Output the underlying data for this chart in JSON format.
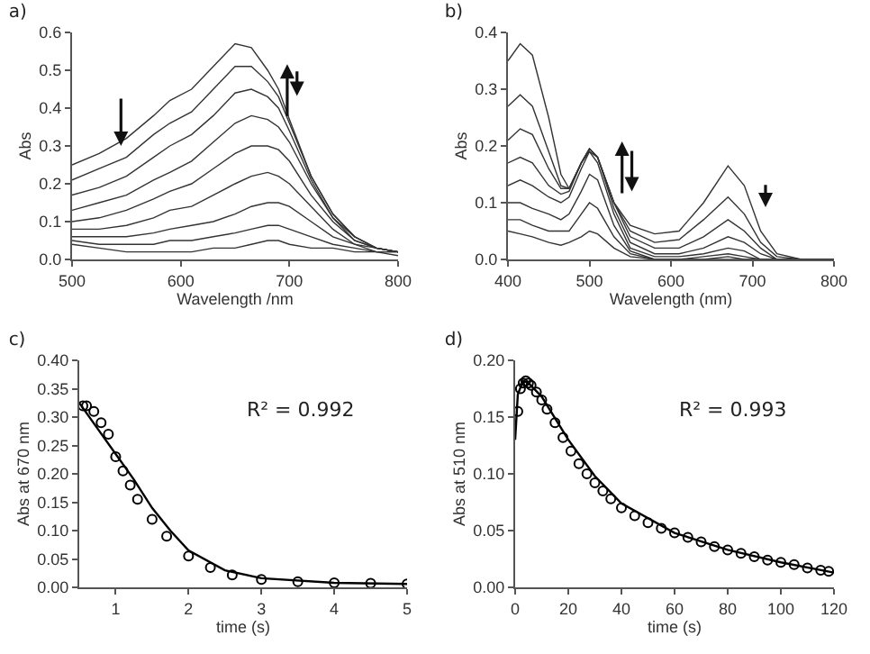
{
  "chart_data": [
    {
      "type": "line",
      "title": "a)",
      "xlabel": "Wavelength /nm",
      "ylabel": "Abs",
      "xlim": [
        500,
        800
      ],
      "xticks": [
        500,
        600,
        700,
        800
      ],
      "ylim": [
        0,
        0.6
      ],
      "yticks": [
        {
          "value": 0,
          "label": "0.0"
        },
        {
          "value": 0.1,
          "label": "0.1"
        },
        {
          "value": 0.2,
          "label": "0.2"
        },
        {
          "value": 0.3,
          "label": "0.3"
        },
        {
          "value": 0.4,
          "label": "0.4"
        },
        {
          "value": 0.5,
          "label": "0.5"
        },
        {
          "value": 0.6,
          "label": "0.6"
        }
      ],
      "grid": false,
      "marker": "none",
      "line_style": "solid",
      "x": [
        500,
        525,
        550,
        575,
        590,
        610,
        630,
        650,
        665,
        680,
        690,
        700,
        720,
        740,
        760,
        780,
        800
      ],
      "series": [
        {
          "color": "#333333",
          "values": [
            0.25,
            0.28,
            0.32,
            0.38,
            0.42,
            0.45,
            0.51,
            0.57,
            0.56,
            0.5,
            0.45,
            0.37,
            0.22,
            0.12,
            0.06,
            0.03,
            0.02
          ]
        },
        {
          "color": "#333333",
          "values": [
            0.21,
            0.24,
            0.27,
            0.33,
            0.36,
            0.39,
            0.45,
            0.51,
            0.51,
            0.47,
            0.43,
            0.36,
            0.22,
            0.12,
            0.06,
            0.03,
            0.02
          ]
        },
        {
          "color": "#333333",
          "values": [
            0.17,
            0.19,
            0.22,
            0.27,
            0.3,
            0.33,
            0.38,
            0.44,
            0.45,
            0.43,
            0.4,
            0.34,
            0.21,
            0.11,
            0.06,
            0.03,
            0.02
          ]
        },
        {
          "color": "#333333",
          "values": [
            0.13,
            0.15,
            0.17,
            0.21,
            0.23,
            0.26,
            0.31,
            0.36,
            0.38,
            0.37,
            0.35,
            0.31,
            0.2,
            0.11,
            0.05,
            0.03,
            0.02
          ]
        },
        {
          "color": "#333333",
          "values": [
            0.1,
            0.11,
            0.13,
            0.16,
            0.18,
            0.2,
            0.24,
            0.28,
            0.3,
            0.3,
            0.29,
            0.26,
            0.17,
            0.1,
            0.05,
            0.03,
            0.02
          ]
        },
        {
          "color": "#333333",
          "values": [
            0.08,
            0.08,
            0.09,
            0.11,
            0.13,
            0.14,
            0.17,
            0.2,
            0.22,
            0.23,
            0.22,
            0.2,
            0.14,
            0.08,
            0.04,
            0.03,
            0.02
          ]
        },
        {
          "color": "#333333",
          "values": [
            0.06,
            0.06,
            0.06,
            0.07,
            0.08,
            0.09,
            0.1,
            0.12,
            0.14,
            0.15,
            0.15,
            0.14,
            0.1,
            0.06,
            0.04,
            0.02,
            0.02
          ]
        },
        {
          "color": "#333333",
          "values": [
            0.05,
            0.04,
            0.04,
            0.04,
            0.05,
            0.05,
            0.06,
            0.07,
            0.08,
            0.09,
            0.09,
            0.08,
            0.06,
            0.04,
            0.03,
            0.02,
            0.02
          ]
        },
        {
          "color": "#333333",
          "values": [
            0.04,
            0.03,
            0.02,
            0.02,
            0.02,
            0.02,
            0.03,
            0.03,
            0.04,
            0.05,
            0.05,
            0.04,
            0.03,
            0.03,
            0.02,
            0.02,
            0.01
          ]
        }
      ]
    },
    {
      "type": "line",
      "title": "b)",
      "xlabel": "Wavelength (nm)",
      "ylabel": "Abs",
      "xlim": [
        400,
        800
      ],
      "xticks": [
        400,
        500,
        600,
        700,
        800
      ],
      "ylim": [
        0,
        0.4
      ],
      "yticks": [
        {
          "value": 0,
          "label": "0.0"
        },
        {
          "value": 0.1,
          "label": "0.1"
        },
        {
          "value": 0.2,
          "label": "0.2"
        },
        {
          "value": 0.3,
          "label": "0.3"
        },
        {
          "value": 0.4,
          "label": "0.4"
        }
      ],
      "grid": false,
      "marker": "none",
      "line_style": "solid",
      "x": [
        400,
        415,
        430,
        450,
        465,
        475,
        490,
        500,
        510,
        530,
        550,
        580,
        610,
        640,
        670,
        690,
        710,
        730,
        760,
        800
      ],
      "series": [
        {
          "color": "#333333",
          "values": [
            0.35,
            0.38,
            0.36,
            0.25,
            0.15,
            0.125,
            0.17,
            0.19,
            0.18,
            0.1,
            0.06,
            0.045,
            0.05,
            0.1,
            0.165,
            0.13,
            0.05,
            0.01,
            0,
            0
          ]
        },
        {
          "color": "#333333",
          "values": [
            0.27,
            0.29,
            0.27,
            0.19,
            0.13,
            0.125,
            0.17,
            0.195,
            0.18,
            0.1,
            0.05,
            0.03,
            0.035,
            0.07,
            0.11,
            0.08,
            0.03,
            0.005,
            0,
            0
          ]
        },
        {
          "color": "#333333",
          "values": [
            0.21,
            0.23,
            0.22,
            0.16,
            0.125,
            0.125,
            0.17,
            0.195,
            0.18,
            0.1,
            0.04,
            0.02,
            0.02,
            0.04,
            0.07,
            0.05,
            0.02,
            0,
            0,
            0
          ]
        },
        {
          "color": "#333333",
          "values": [
            0.17,
            0.18,
            0.17,
            0.13,
            0.115,
            0.12,
            0.17,
            0.195,
            0.18,
            0.09,
            0.03,
            0.01,
            0.01,
            0.02,
            0.04,
            0.03,
            0.01,
            0,
            0,
            0
          ]
        },
        {
          "color": "#333333",
          "values": [
            0.13,
            0.14,
            0.13,
            0.11,
            0.1,
            0.11,
            0.16,
            0.19,
            0.17,
            0.08,
            0.02,
            0.005,
            0.005,
            0.01,
            0.02,
            0.015,
            0,
            0,
            0,
            0
          ]
        },
        {
          "color": "#333333",
          "values": [
            0.1,
            0.1,
            0.09,
            0.08,
            0.07,
            0.08,
            0.12,
            0.15,
            0.14,
            0.06,
            0.015,
            0,
            0,
            0.005,
            0.01,
            0.005,
            0,
            0,
            0,
            0
          ]
        },
        {
          "color": "#333333",
          "values": [
            0.07,
            0.07,
            0.06,
            0.05,
            0.05,
            0.05,
            0.08,
            0.1,
            0.09,
            0.04,
            0.01,
            0,
            0,
            0,
            0.005,
            0,
            0,
            0,
            0,
            0
          ]
        },
        {
          "color": "#333333",
          "values": [
            0.05,
            0.045,
            0.04,
            0.03,
            0.025,
            0.03,
            0.04,
            0.05,
            0.045,
            0.02,
            0.005,
            0,
            0,
            0,
            0,
            0,
            0,
            0,
            0,
            0
          ]
        }
      ]
    },
    {
      "type": "scatter",
      "title": "c)",
      "xlabel": "time (s)",
      "ylabel": "Abs at 670 nm",
      "xlim": [
        0.5,
        5
      ],
      "xticks": [
        1,
        2,
        3,
        4,
        5
      ],
      "ylim": [
        0,
        0.4
      ],
      "yticks": [
        {
          "value": 0,
          "label": "0.00"
        },
        {
          "value": 0.05,
          "label": "0.05"
        },
        {
          "value": 0.1,
          "label": "0.10"
        },
        {
          "value": 0.15,
          "label": "0.15"
        },
        {
          "value": 0.2,
          "label": "0.20"
        },
        {
          "value": 0.25,
          "label": "0.25"
        },
        {
          "value": 0.3,
          "label": "0.30"
        },
        {
          "value": 0.35,
          "label": "0.35"
        },
        {
          "value": 0.4,
          "label": "0.40"
        }
      ],
      "grid": false,
      "annotations": [
        "R² = 0.992"
      ],
      "series": [
        {
          "type": "scatter",
          "marker": "circle",
          "color": "#000000",
          "x": [
            0.55,
            0.6,
            0.7,
            0.8,
            0.9,
            1.0,
            1.1,
            1.2,
            1.3,
            1.5,
            1.7,
            2.0,
            2.3,
            2.6,
            3.0,
            3.5,
            4.0,
            4.5,
            5.0
          ],
          "values": [
            0.32,
            0.32,
            0.31,
            0.29,
            0.27,
            0.23,
            0.205,
            0.18,
            0.155,
            0.12,
            0.09,
            0.055,
            0.035,
            0.022,
            0.014,
            0.01,
            0.008,
            0.007,
            0.006
          ]
        },
        {
          "type": "line",
          "marker": "none",
          "color": "#000000",
          "x": [
            0.5,
            0.75,
            1,
            1.25,
            1.5,
            1.75,
            2,
            2.5,
            3,
            4,
            5
          ],
          "values": [
            0.325,
            0.28,
            0.235,
            0.19,
            0.14,
            0.1,
            0.065,
            0.03,
            0.016,
            0.008,
            0.006
          ]
        }
      ]
    },
    {
      "type": "scatter",
      "title": "d)",
      "xlabel": "time (s)",
      "ylabel": "Abs at 510 nm",
      "xlim": [
        0,
        120
      ],
      "xticks": [
        0,
        20,
        40,
        60,
        80,
        100,
        120
      ],
      "ylim": [
        0,
        0.2
      ],
      "yticks": [
        {
          "value": 0,
          "label": "0.00"
        },
        {
          "value": 0.05,
          "label": "0.05"
        },
        {
          "value": 0.1,
          "label": "0.10"
        },
        {
          "value": 0.15,
          "label": "0.15"
        },
        {
          "value": 0.2,
          "label": "0.20"
        }
      ],
      "grid": false,
      "annotations": [
        "R² = 0.993"
      ],
      "series": [
        {
          "type": "scatter",
          "marker": "circle",
          "color": "#000000",
          "x": [
            1,
            2,
            3,
            4,
            5,
            6,
            8,
            10,
            12,
            15,
            18,
            21,
            24,
            27,
            30,
            33,
            36,
            40,
            45,
            50,
            55,
            60,
            65,
            70,
            75,
            80,
            85,
            90,
            95,
            100,
            105,
            110,
            115,
            118
          ],
          "values": [
            0.155,
            0.175,
            0.18,
            0.182,
            0.18,
            0.178,
            0.172,
            0.165,
            0.157,
            0.145,
            0.132,
            0.12,
            0.109,
            0.1,
            0.092,
            0.085,
            0.078,
            0.07,
            0.063,
            0.057,
            0.052,
            0.048,
            0.044,
            0.04,
            0.036,
            0.033,
            0.03,
            0.027,
            0.024,
            0.022,
            0.02,
            0.017,
            0.015,
            0.014
          ]
        },
        {
          "type": "line",
          "marker": "none",
          "color": "#000000",
          "x": [
            0,
            1,
            3,
            5,
            10,
            20,
            30,
            40,
            60,
            80,
            100,
            120
          ],
          "values": [
            0.13,
            0.17,
            0.182,
            0.18,
            0.168,
            0.13,
            0.098,
            0.074,
            0.048,
            0.033,
            0.022,
            0.013
          ]
        }
      ]
    }
  ]
}
